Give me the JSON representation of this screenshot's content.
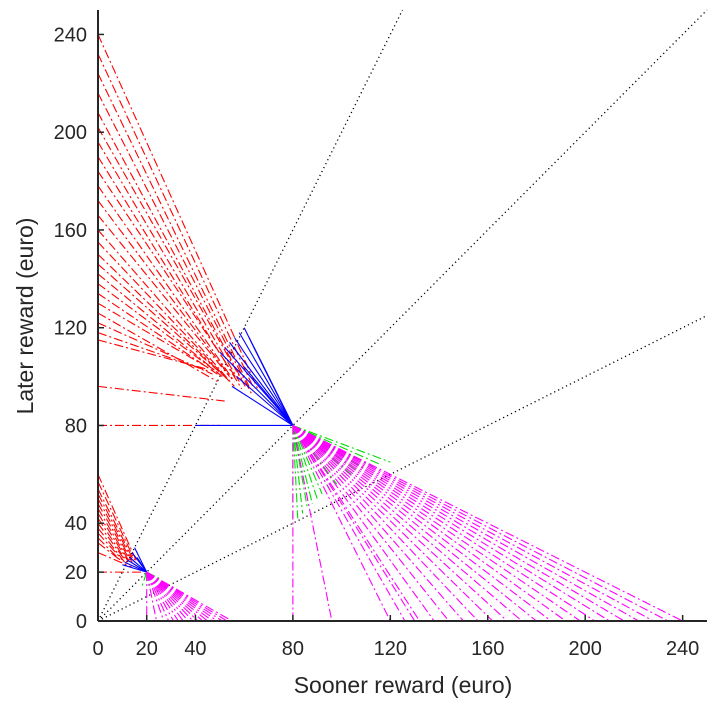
{
  "chart_data": {
    "type": "line",
    "title": "",
    "xlabel": "Sooner reward (euro)",
    "ylabel": "Later reward (euro)",
    "xlim": [
      0,
      250
    ],
    "ylim": [
      0,
      250
    ],
    "xticks": [
      0,
      20,
      40,
      80,
      120,
      160,
      200,
      240
    ],
    "yticks": [
      0,
      20,
      40,
      80,
      120,
      160,
      200,
      240
    ],
    "grid": false,
    "reference_lines": [
      {
        "style": "dotted",
        "color": "#000000",
        "x": [
          0,
          125
        ],
        "y": [
          0,
          250
        ]
      },
      {
        "style": "dotted",
        "color": "#000000",
        "x": [
          0,
          250
        ],
        "y": [
          0,
          250
        ]
      },
      {
        "style": "dotted",
        "color": "#000000",
        "x": [
          0,
          250
        ],
        "y": [
          0,
          125
        ]
      }
    ],
    "series": [
      {
        "color": "#ff0000",
        "style": "dashdot",
        "x": [
          0,
          0,
          0,
          0,
          0,
          0,
          0,
          0,
          0,
          0,
          0,
          0,
          0,
          0,
          0,
          0,
          0,
          0,
          0,
          0,
          0,
          0,
          0,
          0,
          0,
          0
        ],
        "y": [
          240,
          232,
          224,
          216,
          208,
          202,
          196,
          190,
          184,
          178,
          172,
          166,
          160,
          155,
          150,
          146,
          142,
          138,
          134,
          130,
          126,
          122,
          118,
          115,
          96,
          80
        ],
        "x_end": [
          66,
          64,
          62,
          63,
          60,
          61,
          58,
          59,
          57,
          56,
          55,
          54,
          56,
          54,
          53,
          52,
          51,
          50,
          49,
          48,
          49,
          47,
          46,
          45,
          52,
          50
        ],
        "y_end": [
          94,
          95,
          96,
          93,
          97,
          95,
          98,
          95,
          99,
          98,
          99,
          100,
          96,
          98,
          99,
          100,
          100,
          101,
          101,
          102,
          98,
          101,
          102,
          103,
          90,
          80
        ]
      },
      {
        "color": "#0000ff",
        "style": "solid",
        "x": [
          80,
          80,
          80,
          80,
          80,
          80,
          80,
          80,
          80,
          80,
          80,
          80,
          80,
          80
        ],
        "y": [
          80,
          80,
          80,
          80,
          80,
          80,
          80,
          80,
          80,
          80,
          80,
          80,
          80,
          80
        ],
        "x_end": [
          40,
          60,
          58,
          56,
          54,
          52,
          50,
          62,
          64,
          66,
          60,
          57,
          55,
          68
        ],
        "y_end": [
          80,
          120,
          118,
          116,
          114,
          112,
          110,
          116,
          112,
          108,
          104,
          100,
          96,
          104
        ]
      },
      {
        "color": "#00dd00",
        "style": "dashdot",
        "x": [
          80,
          80,
          80,
          80,
          80,
          80,
          80,
          80,
          80,
          80,
          80,
          80,
          80,
          80,
          80,
          80
        ],
        "y": [
          80,
          80,
          80,
          80,
          80,
          80,
          80,
          80,
          80,
          80,
          80,
          80,
          80,
          80,
          80,
          80
        ],
        "x_end": [
          80,
          82,
          84,
          86,
          88,
          90,
          92,
          95,
          98,
          101,
          104,
          107,
          110,
          113,
          116,
          120
        ],
        "y_end": [
          40,
          42,
          44,
          46,
          48,
          50,
          52,
          54,
          56,
          58,
          60,
          61,
          62,
          63,
          64,
          65
        ]
      },
      {
        "color": "#ff00ff",
        "style": "dashdot",
        "x": [
          80,
          80,
          80,
          80,
          80,
          80,
          80,
          80,
          80,
          80,
          80,
          80,
          80,
          80,
          80,
          80,
          80,
          80,
          80,
          80,
          80,
          80,
          80,
          80
        ],
        "y": [
          80,
          80,
          80,
          80,
          80,
          80,
          80,
          80,
          80,
          80,
          80,
          80,
          80,
          80,
          80,
          80,
          80,
          80,
          80,
          80,
          80,
          80,
          80,
          80
        ],
        "x_end": [
          80,
          96,
          120,
          126,
          132,
          138,
          144,
          150,
          156,
          162,
          168,
          174,
          180,
          186,
          192,
          198,
          204,
          210,
          216,
          222,
          228,
          234,
          240,
          130
        ],
        "y_end": [
          0,
          0,
          0,
          0,
          0,
          0,
          0,
          0,
          0,
          0,
          0,
          0,
          0,
          0,
          0,
          0,
          0,
          0,
          0,
          0,
          0,
          0,
          0,
          0
        ]
      },
      {
        "color": "#ff0000",
        "style": "dashdot",
        "x": [
          0,
          0,
          0,
          0,
          0,
          0,
          0,
          0,
          0,
          0,
          0,
          0,
          0,
          0,
          0,
          0
        ],
        "y": [
          60,
          57,
          54,
          52,
          50,
          48,
          46,
          44,
          42,
          40,
          38,
          36,
          34,
          32,
          28,
          20
        ],
        "x_end": [
          16,
          15,
          15,
          14,
          14,
          13,
          13,
          12,
          12,
          11,
          11,
          10,
          10,
          9,
          14,
          18
        ],
        "y_end": [
          24,
          25,
          24,
          25,
          24,
          25,
          24,
          25,
          24,
          25,
          24,
          25,
          24,
          25,
          22,
          20
        ]
      },
      {
        "color": "#0000ff",
        "style": "solid",
        "x": [
          20,
          20,
          20,
          20,
          20,
          20,
          20
        ],
        "y": [
          20,
          20,
          20,
          20,
          20,
          20,
          20
        ],
        "x_end": [
          15,
          14,
          13,
          12,
          11,
          10,
          16
        ],
        "y_end": [
          30,
          28,
          26,
          25,
          24,
          23,
          26
        ]
      },
      {
        "color": "#00dd00",
        "style": "dashdot",
        "x": [
          20,
          20,
          20,
          20,
          20,
          20
        ],
        "y": [
          20,
          20,
          20,
          20,
          20,
          20
        ],
        "x_end": [
          20,
          22,
          24,
          26,
          18,
          21
        ],
        "y_end": [
          15,
          15,
          16,
          17,
          14,
          14
        ]
      },
      {
        "color": "#ff00ff",
        "style": "dashdot",
        "x": [
          20,
          20,
          20,
          20,
          20,
          20,
          20,
          20,
          20,
          20,
          20,
          20,
          20,
          20,
          20,
          20,
          20
        ],
        "y": [
          20,
          20,
          20,
          20,
          20,
          20,
          20,
          20,
          20,
          20,
          20,
          20,
          20,
          20,
          20,
          20,
          20
        ],
        "x_end": [
          20,
          24,
          27,
          29,
          31,
          33,
          35,
          37,
          39,
          41,
          43,
          45,
          47,
          49,
          51,
          53,
          55
        ],
        "y_end": [
          0,
          0,
          0,
          0,
          0,
          0,
          0,
          0,
          0,
          0,
          0,
          0,
          0,
          0,
          0,
          0,
          0
        ]
      }
    ]
  },
  "axes": {
    "xlabel": "Sooner reward (euro)",
    "ylabel": "Later reward (euro)"
  }
}
